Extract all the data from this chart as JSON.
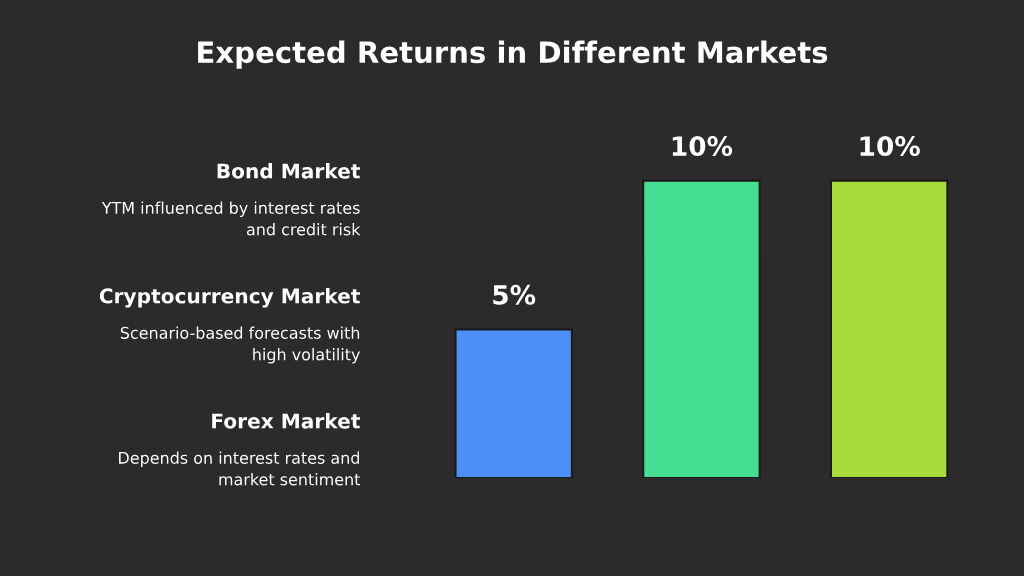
{
  "chart_data": {
    "type": "bar",
    "title": "Expected Returns in Different Markets",
    "categories": [
      null,
      null,
      null
    ],
    "values": [
      5,
      10,
      10
    ],
    "colors": [
      "#4d8ef7",
      "#45de92",
      "#a8dc3c"
    ],
    "value_labels": [
      "5%",
      "10%",
      "10%"
    ],
    "grid": false,
    "annotations": [
      "Bond Market",
      "YTM influenced by interest rates\nand credit risk",
      "Cryptocurrency Market",
      "Scenario-based forecasts with\nhigh volatility",
      "Forex Market",
      "Depends on interest rates and\nmarket sentiment"
    ]
  }
}
